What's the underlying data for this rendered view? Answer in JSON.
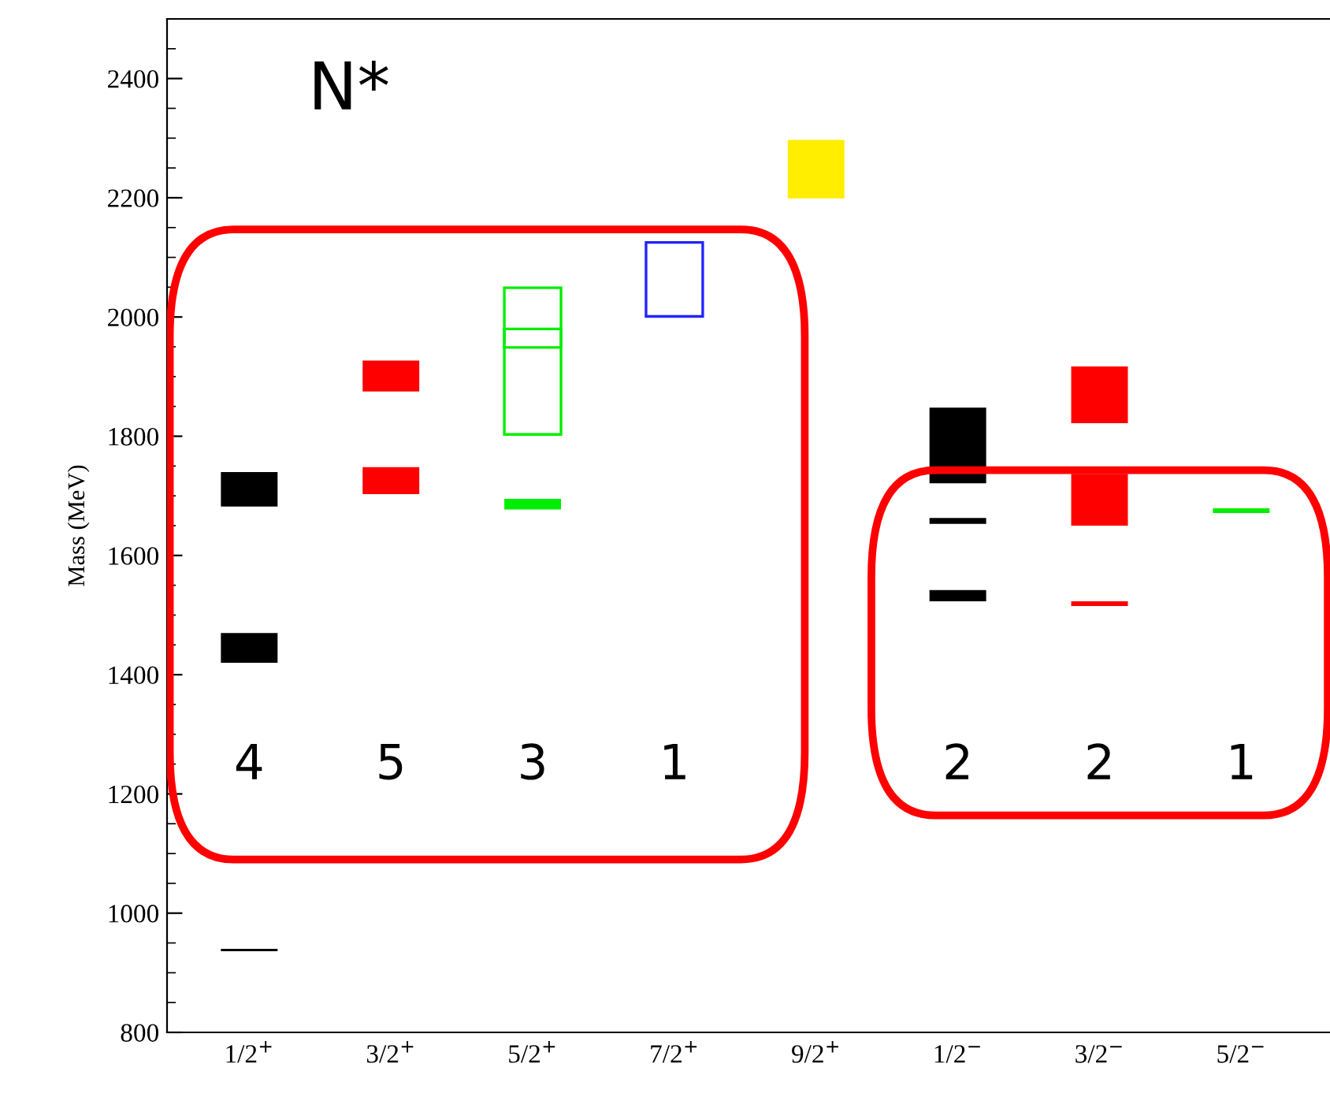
{
  "chart_data": {
    "type": "bar",
    "ylabel": "Mass (MeV)",
    "categories": [
      "1/2$^{+}$",
      "3/2$^{+}$",
      "5/2$^{+}$",
      "7/2$^{+}$",
      "9/2$^{+}$",
      "1/2$^{−}$",
      "3/2$^{−}$",
      "5/2$^{−}$"
    ],
    "series": [
      {
        "color": "#000000",
        "base": [
          936,
          null,
          null,
          null,
          null,
          1523,
          null,
          null
        ],
        "values": [
          4,
          null,
          null,
          null,
          null,
          19,
          null,
          null
        ]
      },
      {
        "color": "#000000",
        "base": [
          1420,
          null,
          null,
          null,
          null,
          1653,
          null,
          null
        ],
        "values": [
          50,
          null,
          null,
          null,
          null,
          10,
          null,
          null
        ]
      },
      {
        "color": "#000000",
        "base": [
          1682,
          null,
          null,
          null,
          null,
          1721,
          null,
          null
        ],
        "values": [
          58,
          null,
          null,
          null,
          null,
          127,
          null,
          null
        ]
      },
      {
        "color": "#ff0000",
        "base": [
          null,
          1703,
          null,
          null,
          null,
          null,
          1515,
          null
        ],
        "values": [
          null,
          45,
          null,
          null,
          null,
          null,
          8,
          null
        ]
      },
      {
        "color": "#ff0000",
        "base": [
          null,
          1875,
          null,
          null,
          null,
          null,
          1650,
          null
        ],
        "values": [
          null,
          52,
          null,
          null,
          null,
          null,
          87,
          null
        ]
      },
      {
        "color": "#ff0000",
        "base": [
          null,
          null,
          null,
          null,
          null,
          null,
          1822,
          null
        ],
        "values": [
          null,
          null,
          null,
          null,
          null,
          null,
          95,
          null
        ]
      },
      {
        "color": "#00ee00",
        "base": [
          null,
          null,
          1677,
          null,
          null,
          null,
          null,
          1671
        ],
        "values": [
          null,
          null,
          18,
          null,
          null,
          null,
          null,
          8
        ]
      },
      {
        "color": "#00ee00",
        "line_style": "solid",
        "base": [
          null,
          null,
          1803,
          null,
          null,
          null,
          null,
          null
        ],
        "values": [
          null,
          null,
          177,
          null,
          null,
          null,
          null,
          null
        ]
      },
      {
        "color": "#00ee00",
        "line_style": "solid",
        "base": [
          null,
          null,
          1949,
          null,
          null,
          null,
          null,
          null
        ],
        "values": [
          null,
          null,
          100,
          null,
          null,
          null,
          null,
          null
        ]
      },
      {
        "color": "#2222ff",
        "line_style": "solid",
        "base": [
          null,
          null,
          null,
          2001,
          null,
          null,
          null,
          null
        ],
        "values": [
          null,
          null,
          null,
          124,
          null,
          null,
          null,
          null
        ]
      },
      {
        "color": "#ffee00",
        "base": [
          null,
          null,
          null,
          null,
          2199,
          null,
          null,
          null
        ],
        "values": [
          null,
          null,
          null,
          null,
          98,
          null,
          null,
          null
        ]
      }
    ],
    "ylim": [
      800,
      2500
    ],
    "yticks": [
      800,
      1000,
      1200,
      1400,
      1600,
      1800,
      2000,
      2200,
      2400
    ],
    "annotations": [
      "N*",
      "4",
      "5",
      "3",
      "1",
      "2",
      "2",
      "1"
    ]
  }
}
